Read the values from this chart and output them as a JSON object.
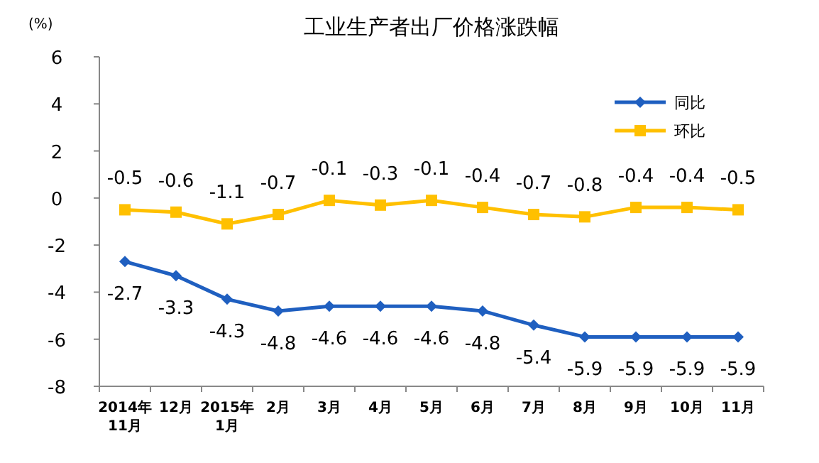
{
  "chart_data": {
    "type": "line",
    "title": "工业生产者出厂价格涨跌幅",
    "ylabel": "(%)",
    "categories": [
      "2014年\n11月",
      "12月",
      "2015年\n1月",
      "2月",
      "3月",
      "4月",
      "5月",
      "6月",
      "7月",
      "8月",
      "9月",
      "10月",
      "11月"
    ],
    "series": [
      {
        "name": "同比",
        "color": "#1f5fc0",
        "marker": "diamond",
        "values": [
          -2.7,
          -3.3,
          -4.3,
          -4.8,
          -4.6,
          -4.6,
          -4.6,
          -4.8,
          -5.4,
          -5.9,
          -5.9,
          -5.9,
          -5.9
        ]
      },
      {
        "name": "环比",
        "color": "#ffc000",
        "marker": "square",
        "values": [
          -0.5,
          -0.6,
          -1.1,
          -0.7,
          -0.1,
          -0.3,
          -0.1,
          -0.4,
          -0.7,
          -0.8,
          -0.4,
          -0.4,
          -0.5
        ]
      }
    ],
    "ylim": [
      -8,
      6
    ],
    "yticks": [
      -8,
      -6,
      -4,
      -2,
      0,
      2,
      4,
      6
    ],
    "legend": "top right",
    "data_labels": true,
    "grid": false
  }
}
